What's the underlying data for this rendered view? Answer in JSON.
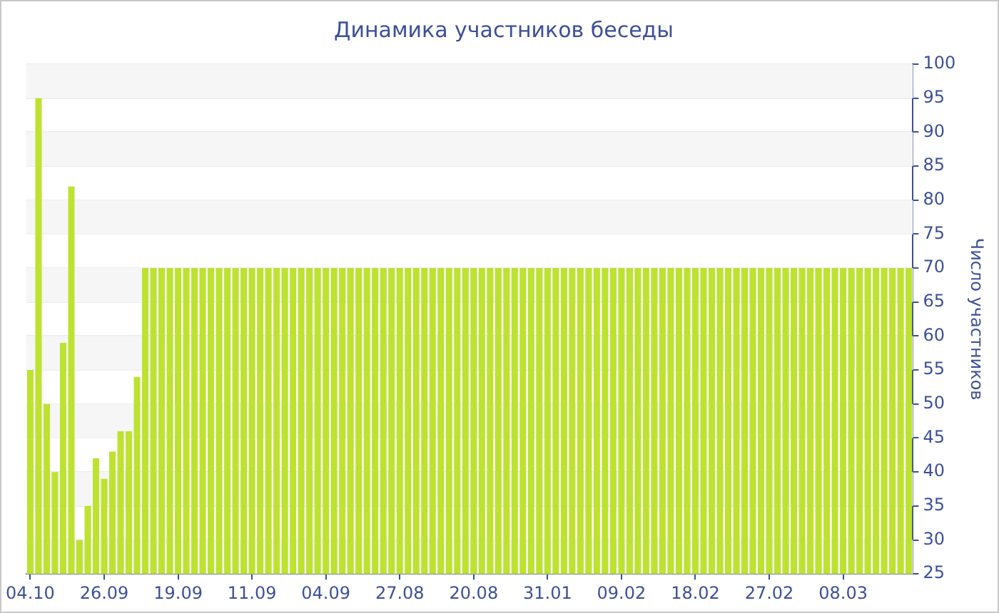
{
  "chart_data": {
    "type": "bar",
    "title": "Динамика участников беседы",
    "ylabel": "Число участников",
    "categories": [
      "04.10",
      null,
      null,
      null,
      null,
      null,
      null,
      null,
      null,
      "26.09",
      null,
      null,
      null,
      null,
      null,
      null,
      null,
      null,
      "19.09",
      null,
      null,
      null,
      null,
      null,
      null,
      null,
      null,
      "11.09",
      null,
      null,
      null,
      null,
      null,
      null,
      null,
      null,
      "04.09",
      null,
      null,
      null,
      null,
      null,
      null,
      null,
      null,
      "27.08",
      null,
      null,
      null,
      null,
      null,
      null,
      null,
      null,
      "20.08",
      null,
      null,
      null,
      null,
      null,
      null,
      null,
      null,
      "31.01",
      null,
      null,
      null,
      null,
      null,
      null,
      null,
      null,
      "09.02",
      null,
      null,
      null,
      null,
      null,
      null,
      null,
      null,
      "18.02",
      null,
      null,
      null,
      null,
      null,
      null,
      null,
      null,
      "27.02",
      null,
      null,
      null,
      null,
      null,
      null,
      null,
      null,
      "08.03",
      null,
      null,
      null,
      null,
      null,
      null,
      null,
      null
    ],
    "values": [
      55,
      95,
      50,
      40,
      59,
      82,
      30,
      35,
      42,
      39,
      43,
      46,
      46,
      54,
      70,
      70,
      70,
      70,
      70,
      70,
      70,
      70,
      70,
      70,
      70,
      70,
      70,
      70,
      70,
      70,
      70,
      70,
      70,
      70,
      70,
      70,
      70,
      70,
      70,
      70,
      70,
      70,
      70,
      70,
      70,
      70,
      70,
      70,
      70,
      70,
      70,
      70,
      70,
      70,
      70,
      70,
      70,
      70,
      70,
      70,
      70,
      70,
      70,
      70,
      70,
      70,
      70,
      70,
      70,
      70,
      70,
      70,
      70,
      70,
      70,
      70,
      70,
      70,
      70,
      70,
      70,
      70,
      70,
      70,
      70,
      70,
      70,
      70,
      70,
      70,
      70,
      70,
      70,
      70,
      70,
      70,
      70,
      70,
      70,
      70,
      70,
      70,
      70,
      70,
      70,
      70,
      70,
      70
    ],
    "color": "#bde22f",
    "ylim": [
      25,
      100
    ],
    "yticks": [
      25,
      30,
      35,
      40,
      45,
      50,
      55,
      60,
      65,
      70,
      75,
      80,
      85,
      90,
      95,
      100
    ],
    "grid": "y",
    "legend": false
  }
}
